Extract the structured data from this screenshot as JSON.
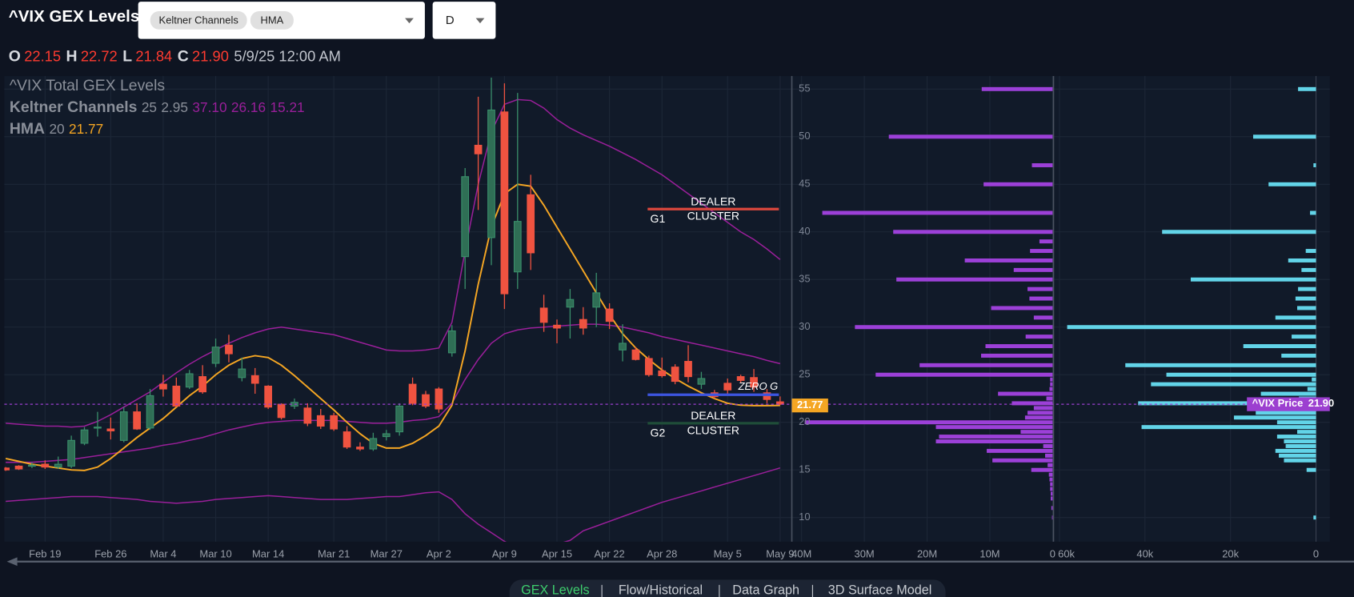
{
  "header": {
    "title": "^VIX GEX Levels",
    "indicators": [
      "Keltner Channels",
      "HMA"
    ],
    "interval": "D",
    "ohlc": [
      {
        "key": "O",
        "value": "22.15"
      },
      {
        "key": "H",
        "value": "22.72"
      },
      {
        "key": "L",
        "value": "21.84"
      },
      {
        "key": "C",
        "value": "21.90"
      }
    ],
    "datetime": "5/9/25 12:00 AM"
  },
  "chart_data": [
    {
      "type": "candlestick",
      "title": "^VIX Total GEX Levels",
      "categories": [
        null,
        null,
        null,
        "Feb 19",
        null,
        null,
        null,
        null,
        "Feb 26",
        null,
        null,
        null,
        "Mar 4",
        null,
        null,
        null,
        "Mar 10",
        null,
        null,
        null,
        "Mar 14",
        null,
        null,
        null,
        null,
        "Mar 21",
        null,
        null,
        null,
        "Mar 27",
        null,
        null,
        null,
        "Apr 2",
        null,
        null,
        null,
        null,
        "Apr 9",
        null,
        null,
        null,
        "Apr 15",
        null,
        null,
        null,
        "Apr 22",
        null,
        null,
        null,
        "Apr 28",
        null,
        null,
        null,
        null,
        "May 5",
        null,
        null,
        null,
        "May 9"
      ],
      "open": [
        15.2,
        15.4,
        15.4,
        15.6,
        15.3,
        15.4,
        17.8,
        19.4,
        19.3,
        18.1,
        21.1,
        19.4,
        24.0,
        23.8,
        23.7,
        24.8,
        26.2,
        28.1,
        24.7,
        24.9,
        23.8,
        21.9,
        21.7,
        21.5,
        20.7,
        20.7,
        19.0,
        17.4,
        17.2,
        18.5,
        19.0,
        24.0,
        22.9,
        23.5,
        27.3,
        37.4,
        49.1,
        39.4,
        52.6,
        35.8,
        43.9,
        32.0,
        30.2,
        32.1,
        30.8,
        32.1,
        31.9,
        27.6,
        27.6,
        26.7,
        25.4,
        25.8,
        26.4,
        24.0,
        23.1,
        24.1,
        24.8,
        24.7,
        23.1,
        22.15
      ],
      "high": [
        15.3,
        15.5,
        15.8,
        16.0,
        16.4,
        18.6,
        19.5,
        21.1,
        20.5,
        21.6,
        22.0,
        23.5,
        25.0,
        24.7,
        25.5,
        26.0,
        28.8,
        29.2,
        26.8,
        25.7,
        23.9,
        22.0,
        22.5,
        22.0,
        21.4,
        21.0,
        19.6,
        17.9,
        18.9,
        19.2,
        22.0,
        24.7,
        23.3,
        23.7,
        30.2,
        46.7,
        54.2,
        56.2,
        55.6,
        54.6,
        46.0,
        33.4,
        30.8,
        34.0,
        32.1,
        35.7,
        32.5,
        30.3,
        27.9,
        27.0,
        26.8,
        26.1,
        28.1,
        25.3,
        23.4,
        24.6,
        25.0,
        25.6,
        23.5,
        22.72
      ],
      "low": [
        14.9,
        15.0,
        15.2,
        15.1,
        15.1,
        15.2,
        17.6,
        18.5,
        18.2,
        17.9,
        19.2,
        19.2,
        22.7,
        21.6,
        23.5,
        23.0,
        25.8,
        26.3,
        24.3,
        23.0,
        21.4,
        20.3,
        21.4,
        19.6,
        19.3,
        19.1,
        17.2,
        17.0,
        17.0,
        18.1,
        18.6,
        21.8,
        21.5,
        21.0,
        26.9,
        34.0,
        42.3,
        36.5,
        31.9,
        34.0,
        36.0,
        29.5,
        28.3,
        28.8,
        29.2,
        30.0,
        29.8,
        26.4,
        26.5,
        24.8,
        24.7,
        24.0,
        24.2,
        23.5,
        22.5,
        23.0,
        24.1,
        23.2,
        22.0,
        21.84
      ],
      "close": [
        15.0,
        15.1,
        15.5,
        15.3,
        15.6,
        18.1,
        19.2,
        19.5,
        19.1,
        21.1,
        19.3,
        22.8,
        23.5,
        21.7,
        25.1,
        23.2,
        27.9,
        27.2,
        25.6,
        24.1,
        21.6,
        20.5,
        22.1,
        19.9,
        19.6,
        19.3,
        17.4,
        17.2,
        18.3,
        18.8,
        21.7,
        22.0,
        21.7,
        21.4,
        29.6,
        45.8,
        48.2,
        52.8,
        33.5,
        41.1,
        37.8,
        30.5,
        29.9,
        32.9,
        29.9,
        33.6,
        30.6,
        28.3,
        26.6,
        25.0,
        24.9,
        24.3,
        24.8,
        24.6,
        22.7,
        23.4,
        24.4,
        23.7,
        22.4,
        21.9
      ],
      "up_color": "#3a8f6b",
      "down_color": "#ef5340",
      "ylim": [
        7.46,
        56.37
      ],
      "yticks": [
        10,
        15,
        20,
        25,
        30,
        35,
        40,
        45,
        50,
        55
      ],
      "grid": true,
      "indicators": [
        {
          "name": "Keltner Channels",
          "params": [
            "25",
            "2.95"
          ],
          "value_labels": [
            "37.10",
            "26.16",
            "15.21"
          ],
          "color": "#9a1f9a",
          "lines": [
            {
              "color": "#9a1f9a",
              "values": [
                19.9,
                19.8,
                19.7,
                19.6,
                19.6,
                19.5,
                19.6,
                20.1,
                20.8,
                21.6,
                22.4,
                23.2,
                24.2,
                25.2,
                26.1,
                26.9,
                27.6,
                28.3,
                28.9,
                29.4,
                29.8,
                30.0,
                29.8,
                29.6,
                29.4,
                29.2,
                28.8,
                28.4,
                28.0,
                27.6,
                27.5,
                27.5,
                27.6,
                27.8,
                30.5,
                38.0,
                45.0,
                50.5,
                53.4,
                53.9,
                53.8,
                53.0,
                51.8,
                50.9,
                50.2,
                49.6,
                49.0,
                48.3,
                47.6,
                46.8,
                46.0,
                45.0,
                44.0,
                43.0,
                42.0,
                41.0,
                40.0,
                39.2,
                38.2,
                37.1
              ]
            },
            {
              "color": "#9a1f9a",
              "values": [
                15.8,
                15.8,
                15.8,
                15.9,
                16.0,
                16.1,
                16.3,
                16.5,
                16.7,
                16.9,
                17.1,
                17.3,
                17.6,
                17.8,
                18.1,
                18.4,
                18.8,
                19.2,
                19.5,
                19.8,
                20.0,
                20.1,
                20.2,
                20.2,
                20.2,
                20.2,
                20.1,
                20.0,
                19.9,
                19.9,
                20.0,
                20.2,
                20.3,
                20.6,
                22.0,
                24.5,
                26.6,
                28.3,
                29.3,
                29.7,
                29.9,
                30.0,
                30.1,
                30.2,
                30.3,
                30.3,
                30.2,
                30.0,
                29.7,
                29.4,
                29.0,
                28.7,
                28.4,
                28.1,
                27.8,
                27.5,
                27.2,
                26.9,
                26.5,
                26.16
              ]
            },
            {
              "color": "#9a1f9a",
              "values": [
                11.7,
                11.8,
                11.9,
                12.0,
                12.1,
                12.2,
                12.2,
                12.2,
                12.1,
                12.0,
                11.9,
                11.7,
                11.6,
                11.5,
                11.6,
                11.7,
                11.9,
                12.0,
                12.1,
                12.2,
                12.3,
                12.2,
                12.1,
                12.0,
                11.9,
                11.9,
                11.9,
                12.0,
                12.1,
                12.2,
                12.2,
                12.4,
                12.6,
                12.7,
                11.9,
                10.4,
                9.3,
                8.4,
                7.5,
                6.8,
                6.3,
                6.8,
                7.2,
                7.6,
                8.6,
                9.1,
                9.6,
                10.1,
                10.6,
                11.1,
                11.6,
                12.0,
                12.4,
                12.8,
                13.2,
                13.6,
                14.0,
                14.4,
                14.8,
                15.21
              ]
            }
          ]
        },
        {
          "name": "HMA",
          "params": [
            "20"
          ],
          "value_labels": [
            "21.77"
          ],
          "color": "#f5a623",
          "lines": [
            {
              "color": "#f5a623",
              "values": [
                16.2,
                15.9,
                15.6,
                15.4,
                15.2,
                15.0,
                14.95,
                15.3,
                16.2,
                17.3,
                18.4,
                19.4,
                20.4,
                21.6,
                22.8,
                23.8,
                25.0,
                26.0,
                26.7,
                27.0,
                26.8,
                26.0,
                24.9,
                23.7,
                22.5,
                21.3,
                20.0,
                18.8,
                17.8,
                17.3,
                17.3,
                17.8,
                18.6,
                19.6,
                21.8,
                27.5,
                34.5,
                40.5,
                44.0,
                45.0,
                44.8,
                42.8,
                40.5,
                38.2,
                35.9,
                33.6,
                31.3,
                29.3,
                27.8,
                26.6,
                25.5,
                24.6,
                23.8,
                23.1,
                22.5,
                22.0,
                21.8,
                21.75,
                21.75,
                21.77
              ]
            }
          ]
        }
      ],
      "annotations": [
        {
          "label": "G1",
          "value": 42.4,
          "color": "#d9473d",
          "text": [
            "DEALER",
            "CLUSTER"
          ]
        },
        {
          "label": "ZERO G",
          "value": 22.9,
          "color": "#3d55e0"
        },
        {
          "label": "G2",
          "value": 19.9,
          "color": "#1f4d38",
          "text": [
            "DEALER",
            "CLUSTER"
          ]
        }
      ],
      "price_line": {
        "label": "^VIX Price",
        "value": 21.9,
        "value_label": "21.90",
        "color": "#9c3fd0"
      }
    },
    {
      "type": "bar",
      "orientation": "horizontal",
      "y": [
        10,
        11,
        12,
        12.5,
        13,
        13.5,
        14,
        14.5,
        15,
        15.5,
        16,
        16.5,
        17,
        17.5,
        18,
        18.5,
        19,
        19.5,
        20,
        20.5,
        21,
        21.5,
        22,
        22.5,
        23,
        23.5,
        24,
        24.5,
        25,
        26,
        27,
        28,
        29,
        30,
        31,
        32,
        33,
        34,
        35,
        36,
        37,
        38,
        39,
        40,
        41,
        42,
        43,
        44,
        45,
        46,
        47,
        48,
        49,
        50,
        51,
        52,
        53,
        54,
        55
      ],
      "values": [
        100000,
        200000,
        300000,
        300000,
        400000,
        400000,
        500000,
        600000,
        3400000,
        800000,
        9600000,
        1200000,
        10500000,
        1500000,
        18600000,
        18100000,
        5100000,
        18600000,
        39500000,
        4400000,
        4000000,
        3000000,
        6500000,
        1000000,
        8700000,
        500000,
        400000,
        400000,
        28200000,
        21200000,
        11400000,
        10700000,
        4300000,
        31500000,
        3000000,
        9800000,
        3700000,
        4000000,
        24900000,
        6200000,
        14000000,
        3600000,
        2100000,
        25400000,
        0,
        36700000,
        0,
        0,
        11000000,
        0,
        3300000,
        0,
        0,
        26100000,
        0,
        0,
        0,
        0,
        11300000
      ],
      "color": "#9c40d8",
      "xlim": [
        41000000,
        0
      ],
      "xticks": [
        {
          "value": 40000000,
          "label": "40M"
        },
        {
          "value": 30000000,
          "label": "30M"
        },
        {
          "value": 20000000,
          "label": "20M"
        },
        {
          "value": 10000000,
          "label": "10M"
        },
        0
      ]
    },
    {
      "type": "bar",
      "orientation": "horizontal",
      "y": [
        10,
        11,
        12,
        12.5,
        13,
        13.5,
        14,
        14.5,
        15,
        15.5,
        16,
        16.5,
        17,
        17.5,
        18,
        18.5,
        19,
        19.5,
        20,
        20.5,
        21,
        21.5,
        22,
        22.5,
        23,
        23.5,
        24,
        24.5,
        25,
        26,
        27,
        28,
        29,
        30,
        31,
        32,
        33,
        34,
        35,
        36,
        37,
        38,
        39,
        40,
        41,
        42,
        43,
        44,
        45,
        46,
        47,
        48,
        49,
        50,
        51,
        52,
        53,
        54,
        55
      ],
      "values": [
        600,
        0,
        0,
        0,
        0,
        0,
        0,
        0,
        2200,
        0,
        7500,
        8700,
        9500,
        7100,
        7500,
        9100,
        4400,
        40800,
        9100,
        19200,
        14100,
        8500,
        41600,
        4000,
        12900,
        2000,
        38600,
        1000,
        35000,
        44600,
        8100,
        17000,
        5700,
        58200,
        9500,
        4400,
        4800,
        4200,
        29300,
        3400,
        6500,
        2400,
        0,
        36000,
        0,
        1400,
        0,
        0,
        11100,
        0,
        600,
        0,
        0,
        14700,
        0,
        0,
        0,
        0,
        4200
      ],
      "color": "#62d4e8",
      "xlim": [
        61400,
        0
      ],
      "xticks": [
        {
          "value": 60000,
          "label": "60k"
        },
        {
          "value": 40000,
          "label": "40k"
        },
        {
          "value": 20000,
          "label": "20k"
        },
        0
      ]
    }
  ],
  "tabs": [
    "GEX Levels",
    "Flow/Historical",
    "Data Graph",
    "3D Surface Model"
  ]
}
